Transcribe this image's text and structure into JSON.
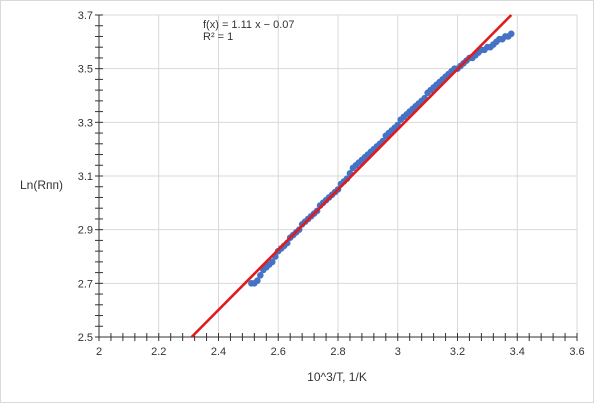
{
  "chart_data": {
    "type": "scatter",
    "xlabel": "10^3/T, 1/K",
    "ylabel": "Ln(Rпп)",
    "xlim": [
      2,
      3.6
    ],
    "ylim": [
      2.5,
      3.7
    ],
    "x_ticks": [
      "2",
      "2.2",
      "2.4",
      "2.6",
      "2.8",
      "3",
      "3.2",
      "3.4",
      "3.6"
    ],
    "y_ticks": [
      "2.5",
      "2.7",
      "2.9",
      "3.1",
      "3.3",
      "3.5",
      "3.7"
    ],
    "grid": true,
    "annotations": [
      "f(x) = 1.11 x − 0.07",
      "R² = 1"
    ],
    "series": [
      {
        "type": "scatter",
        "color": "#4472c4",
        "x": [
          2.51,
          2.52,
          2.53,
          2.54,
          2.55,
          2.56,
          2.57,
          2.58,
          2.59,
          2.6,
          2.61,
          2.62,
          2.63,
          2.64,
          2.65,
          2.66,
          2.67,
          2.68,
          2.69,
          2.7,
          2.71,
          2.72,
          2.73,
          2.74,
          2.75,
          2.76,
          2.77,
          2.78,
          2.79,
          2.8,
          2.81,
          2.82,
          2.83,
          2.84,
          2.85,
          2.86,
          2.87,
          2.88,
          2.89,
          2.9,
          2.91,
          2.92,
          2.93,
          2.94,
          2.95,
          2.96,
          2.97,
          2.98,
          2.99,
          3.0,
          3.01,
          3.02,
          3.03,
          3.04,
          3.05,
          3.06,
          3.07,
          3.08,
          3.09,
          3.1,
          3.11,
          3.12,
          3.13,
          3.14,
          3.15,
          3.16,
          3.17,
          3.18,
          3.19,
          3.2,
          3.21,
          3.22,
          3.23,
          3.24,
          3.25,
          3.26,
          3.27,
          3.28,
          3.29,
          3.3,
          3.31,
          3.32,
          3.33,
          3.34,
          3.35,
          3.36,
          3.37,
          3.38
        ],
        "y": [
          2.7,
          2.7,
          2.71,
          2.73,
          2.75,
          2.76,
          2.77,
          2.78,
          2.8,
          2.82,
          2.83,
          2.84,
          2.85,
          2.87,
          2.88,
          2.89,
          2.9,
          2.92,
          2.93,
          2.94,
          2.95,
          2.96,
          2.97,
          2.99,
          3.0,
          3.01,
          3.02,
          3.03,
          3.04,
          3.05,
          3.07,
          3.08,
          3.09,
          3.11,
          3.13,
          3.14,
          3.15,
          3.16,
          3.17,
          3.18,
          3.19,
          3.2,
          3.21,
          3.22,
          3.23,
          3.25,
          3.26,
          3.27,
          3.28,
          3.29,
          3.31,
          3.32,
          3.33,
          3.34,
          3.35,
          3.36,
          3.37,
          3.38,
          3.39,
          3.41,
          3.42,
          3.43,
          3.44,
          3.45,
          3.46,
          3.47,
          3.48,
          3.49,
          3.5,
          3.5,
          3.51,
          3.52,
          3.53,
          3.54,
          3.54,
          3.55,
          3.56,
          3.57,
          3.57,
          3.58,
          3.58,
          3.59,
          3.6,
          3.61,
          3.61,
          3.62,
          3.62,
          3.63
        ]
      },
      {
        "type": "line",
        "color": "#e31a1c",
        "x": [
          2.31,
          3.38
        ],
        "y": [
          2.5,
          3.7
        ]
      }
    ]
  }
}
